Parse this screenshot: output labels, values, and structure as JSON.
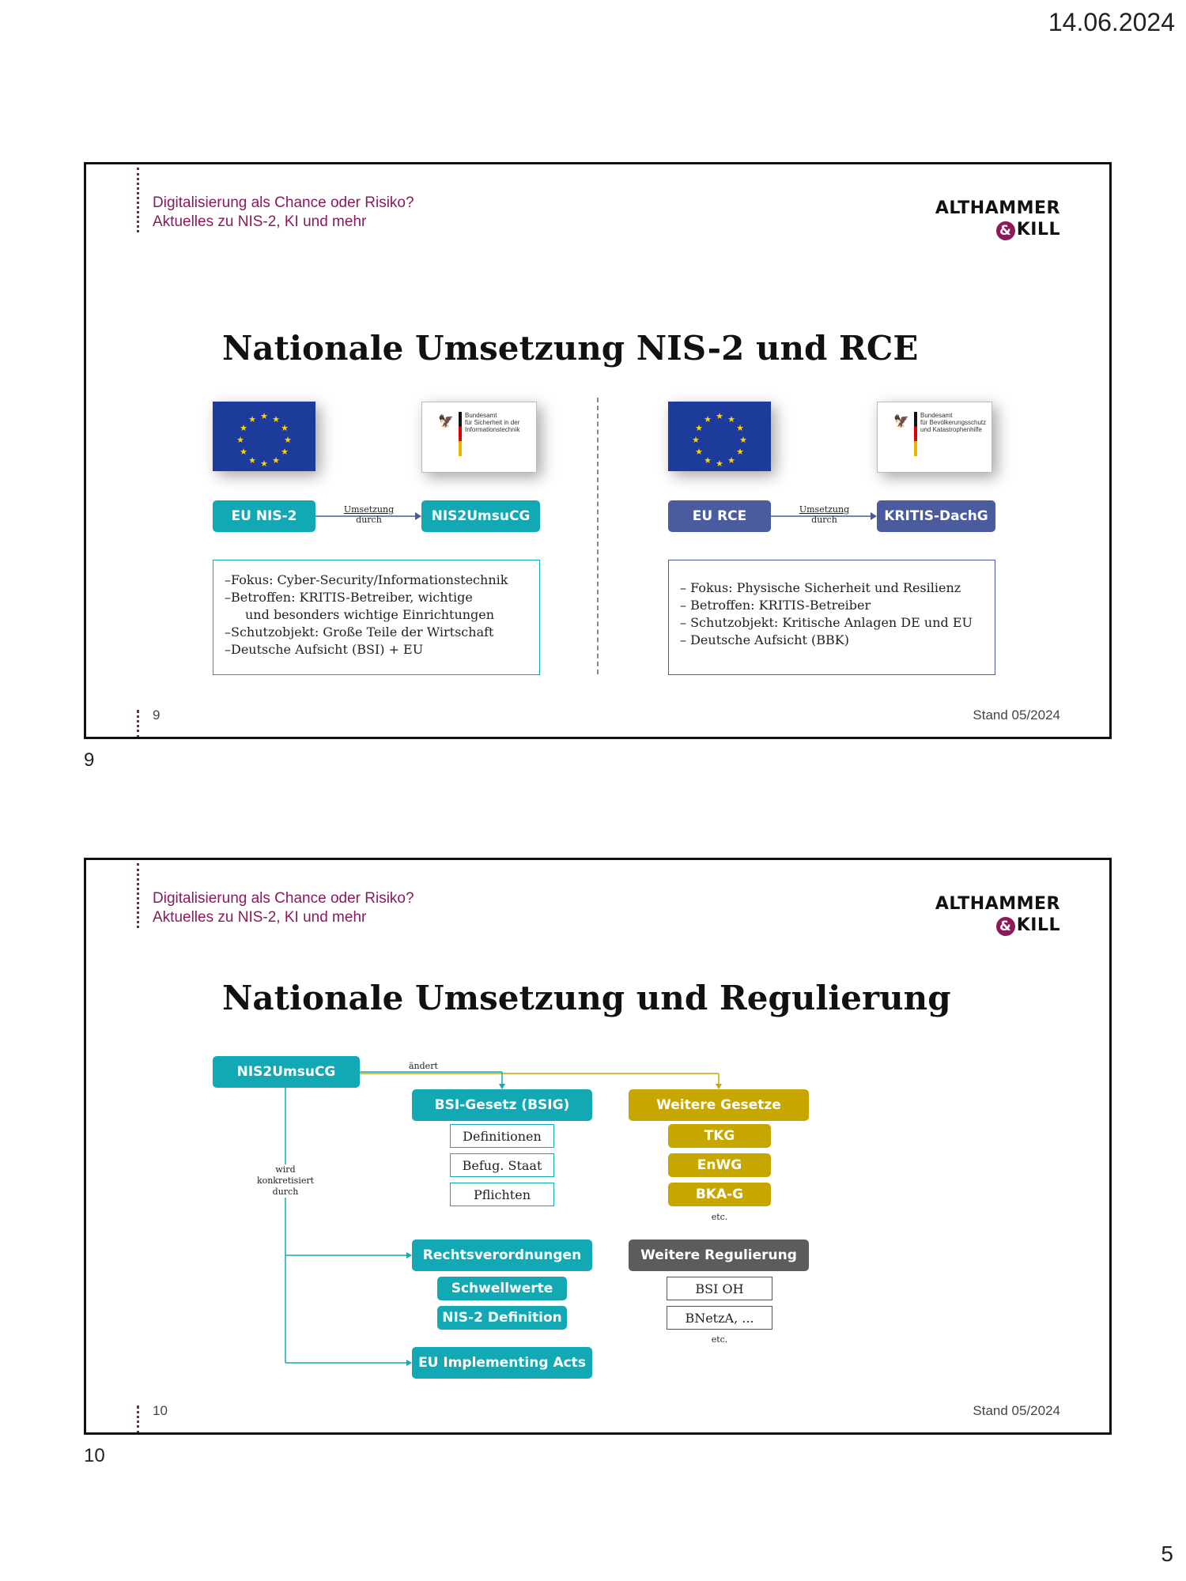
{
  "page": {
    "date": "14.06.2024",
    "number": "5"
  },
  "slides": [
    {
      "caption": "9",
      "header": {
        "line1": "Digitalisierung als Chance oder Risiko?",
        "line2": "Aktuelles zu NIS-2, KI und mehr"
      },
      "logo": {
        "line1": "ALTHAMMER",
        "amp": "&",
        "line2": "KILL"
      },
      "title": "Nationale Umsetzung NIS-2 und RCE",
      "left": {
        "agency_text": [
          "Bundesamt",
          "für Sicherheit in der",
          "Informationstechnik"
        ],
        "from": "EU NIS-2",
        "arrow_label": [
          "Umsetzung",
          "durch"
        ],
        "to": "NIS2UmsuCG",
        "bullets": [
          "–Fokus: Cyber-Security/Informationstechnik",
          "–Betroffen: KRITIS-Betreiber, wichtige",
          "und besonders wichtige Einrichtungen",
          "–Schutzobjekt: Große Teile der Wirtschaft",
          "–Deutsche Aufsicht (BSI) + EU"
        ]
      },
      "right": {
        "agency_text": [
          "Bundesamt",
          "für Bevölkerungsschutz",
          "und Katastrophenhilfe"
        ],
        "from": "EU RCE",
        "arrow_label": [
          "Umsetzung",
          "durch"
        ],
        "to": "KRITIS-DachG",
        "bullets": [
          "–   Fokus: Physische Sicherheit und Resilienz",
          "–   Betroffen: KRITIS-Betreiber",
          "–   Schutzobjekt: Kritische Anlagen DE und EU",
          "–   Deutsche Aufsicht (BBK)"
        ]
      },
      "footer": {
        "number": "9",
        "stand": "Stand 05/2024"
      }
    },
    {
      "caption": "10",
      "header": {
        "line1": "Digitalisierung als Chance oder Risiko?",
        "line2": "Aktuelles zu NIS-2, KI und mehr"
      },
      "logo": {
        "line1": "ALTHAMMER",
        "amp": "&",
        "line2": "KILL"
      },
      "title": "Nationale Umsetzung und Regulierung",
      "diagram": {
        "root": "NIS2UmsuCG",
        "aendert": "ändert",
        "konkretisiert": [
          "wird",
          "konkretisiert",
          "durch"
        ],
        "bsig": "BSI-Gesetz (BSIG)",
        "bsig_items": [
          "Definitionen",
          "Befug. Staat",
          "Pflichten"
        ],
        "weitere_gesetze": "Weitere Gesetze",
        "gesetze_items": [
          "TKG",
          "EnWG",
          "BKA-G"
        ],
        "etc1": "etc.",
        "rechtsverordnungen": "Rechtsverordnungen",
        "rv_items": [
          "Schwellwerte",
          "NIS-2 Definition"
        ],
        "weitere_regulierung": "Weitere Regulierung",
        "regulierung_items": [
          "BSI OH",
          "BNetzA, ..."
        ],
        "etc2": "etc.",
        "implementing": "EU Implementing Acts"
      },
      "footer": {
        "number": "10",
        "stand": "Stand 05/2024"
      }
    }
  ],
  "colors": {
    "teal": "#12a9b4",
    "navy": "#4a5c9e",
    "gold": "#c8a600",
    "grey": "#5c5c5c",
    "magenta": "#8a1a5a"
  },
  "icons": [
    "eu-flag-icon",
    "federal-eagle-icon",
    "arrow-icon"
  ]
}
